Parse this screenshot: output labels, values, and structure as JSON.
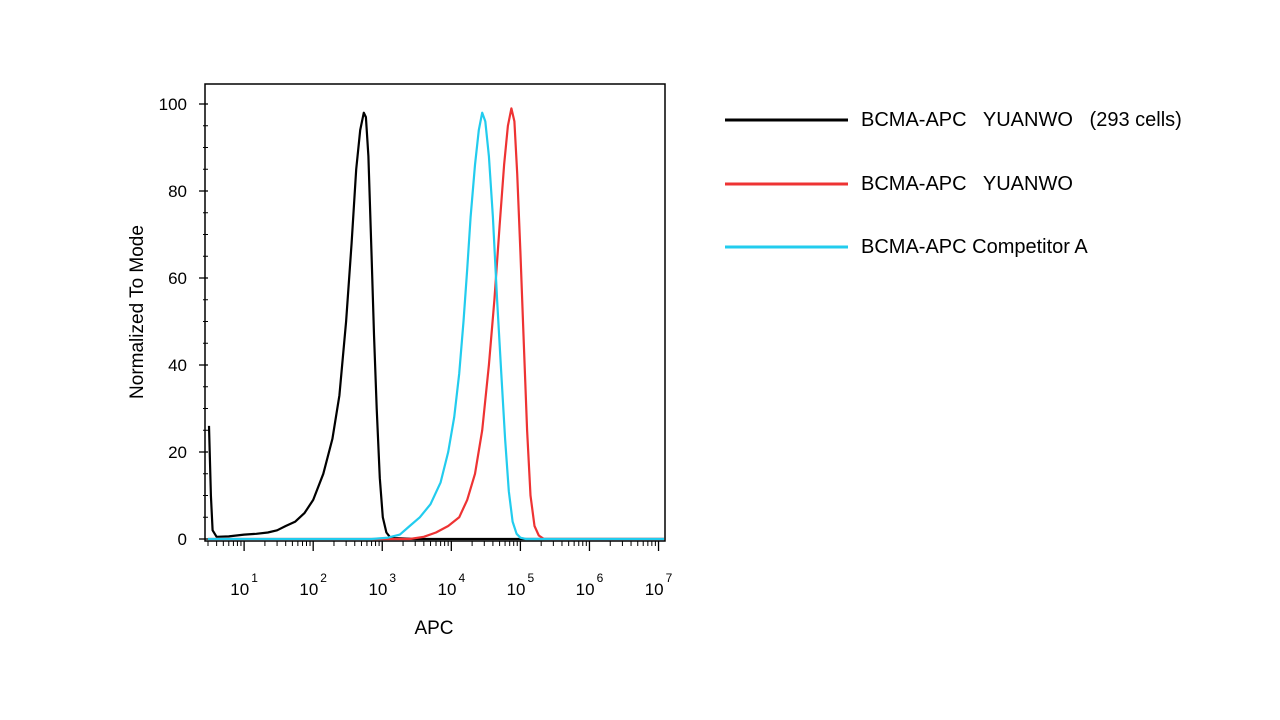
{
  "chart_data": {
    "type": "line",
    "xlabel": "APC",
    "ylabel": "Normalized To Mode",
    "x_scale": "log",
    "xlim": [
      3,
      12000000
    ],
    "ylim": [
      0,
      100
    ],
    "y_ticks": [
      "0",
      "20",
      "40",
      "60",
      "80",
      "100"
    ],
    "x_ticks": [
      {
        "value": 10,
        "base": "10",
        "exp": "1"
      },
      {
        "value": 100,
        "base": "10",
        "exp": "2"
      },
      {
        "value": 1000,
        "base": "10",
        "exp": "3"
      },
      {
        "value": 10000,
        "base": "10",
        "exp": "4"
      },
      {
        "value": 100000,
        "base": "10",
        "exp": "5"
      },
      {
        "value": 1000000,
        "base": "10",
        "exp": "6"
      },
      {
        "value": 10000000,
        "base": "10",
        "exp": "7"
      }
    ],
    "legend_position": "right",
    "grid": false,
    "series": [
      {
        "name": "BCMA-APC   YUANWO   (293 cells)",
        "color": "#000000",
        "points": [
          [
            3.1,
            26
          ],
          [
            3.3,
            10
          ],
          [
            3.5,
            2
          ],
          [
            4,
            0.5
          ],
          [
            6,
            0.6
          ],
          [
            10,
            1.0
          ],
          [
            15,
            1.2
          ],
          [
            22,
            1.5
          ],
          [
            30,
            2
          ],
          [
            40,
            3
          ],
          [
            55,
            4
          ],
          [
            75,
            6
          ],
          [
            100,
            9
          ],
          [
            140,
            15
          ],
          [
            190,
            23
          ],
          [
            240,
            33
          ],
          [
            300,
            50
          ],
          [
            360,
            68
          ],
          [
            420,
            85
          ],
          [
            480,
            94
          ],
          [
            540,
            98
          ],
          [
            580,
            97
          ],
          [
            630,
            88
          ],
          [
            700,
            65
          ],
          [
            760,
            47
          ],
          [
            830,
            30
          ],
          [
            920,
            14
          ],
          [
            1020,
            5
          ],
          [
            1150,
            1.5
          ],
          [
            1300,
            0.4
          ],
          [
            1500,
            0.2
          ],
          [
            3000,
            0
          ],
          [
            12000000,
            0
          ]
        ]
      },
      {
        "name": "BCMA-APC   YUANWO",
        "color": "#ee3333",
        "points": [
          [
            3,
            0
          ],
          [
            2500,
            0
          ],
          [
            4000,
            0.5
          ],
          [
            6000,
            1.5
          ],
          [
            9000,
            3
          ],
          [
            13000,
            5
          ],
          [
            17000,
            9
          ],
          [
            22000,
            15
          ],
          [
            28000,
            25
          ],
          [
            35000,
            40
          ],
          [
            42000,
            55
          ],
          [
            50000,
            72
          ],
          [
            58000,
            86
          ],
          [
            66000,
            95
          ],
          [
            74000,
            99
          ],
          [
            82000,
            96
          ],
          [
            90000,
            84
          ],
          [
            100000,
            66
          ],
          [
            112000,
            45
          ],
          [
            125000,
            25
          ],
          [
            140000,
            10
          ],
          [
            160000,
            3
          ],
          [
            185000,
            0.8
          ],
          [
            220000,
            0
          ],
          [
            12000000,
            0
          ]
        ]
      },
      {
        "name": "BCMA-APC Competitor A",
        "color": "#22ccee",
        "points": [
          [
            3,
            0
          ],
          [
            700,
            0
          ],
          [
            1200,
            0.3
          ],
          [
            1800,
            1
          ],
          [
            2500,
            3
          ],
          [
            3500,
            5
          ],
          [
            5000,
            8
          ],
          [
            7000,
            13
          ],
          [
            9000,
            20
          ],
          [
            11000,
            28
          ],
          [
            13000,
            38
          ],
          [
            15000,
            50
          ],
          [
            17000,
            62
          ],
          [
            19000,
            74
          ],
          [
            22000,
            86
          ],
          [
            25000,
            94
          ],
          [
            28000,
            98
          ],
          [
            31000,
            96
          ],
          [
            35000,
            88
          ],
          [
            40000,
            74
          ],
          [
            46000,
            55
          ],
          [
            53000,
            38
          ],
          [
            60000,
            23
          ],
          [
            68000,
            11
          ],
          [
            77000,
            4
          ],
          [
            88000,
            1.2
          ],
          [
            100000,
            0.3
          ],
          [
            120000,
            0
          ],
          [
            12000000,
            0
          ]
        ]
      }
    ]
  }
}
